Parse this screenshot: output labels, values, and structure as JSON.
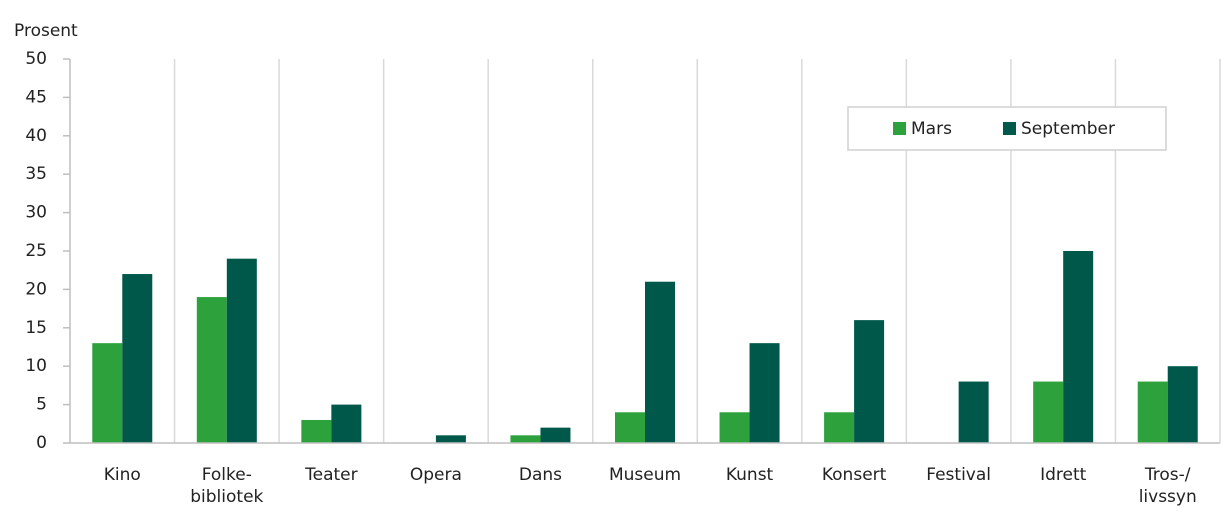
{
  "chart_data": {
    "type": "bar",
    "y_label": "Prosent",
    "categories": [
      "Kino",
      "Folke-\nbibliotek",
      "Teater",
      "Opera",
      "Dans",
      "Museum",
      "Kunst",
      "Konsert",
      "Festival",
      "Idrett",
      "Tros-/\nlivssyn"
    ],
    "series": [
      {
        "name": "Mars",
        "color": "#2ca13c",
        "values": [
          13,
          19,
          3,
          0,
          1,
          4,
          4,
          4,
          0,
          8,
          8
        ]
      },
      {
        "name": "September",
        "color": "#00584a",
        "values": [
          22,
          24,
          5,
          1,
          2,
          21,
          13,
          16,
          8,
          25,
          10
        ]
      }
    ],
    "ylim": [
      0,
      50
    ],
    "yticks": [
      0,
      5,
      10,
      15,
      20,
      25,
      30,
      35,
      40,
      45,
      50
    ],
    "legend": "top-right"
  }
}
